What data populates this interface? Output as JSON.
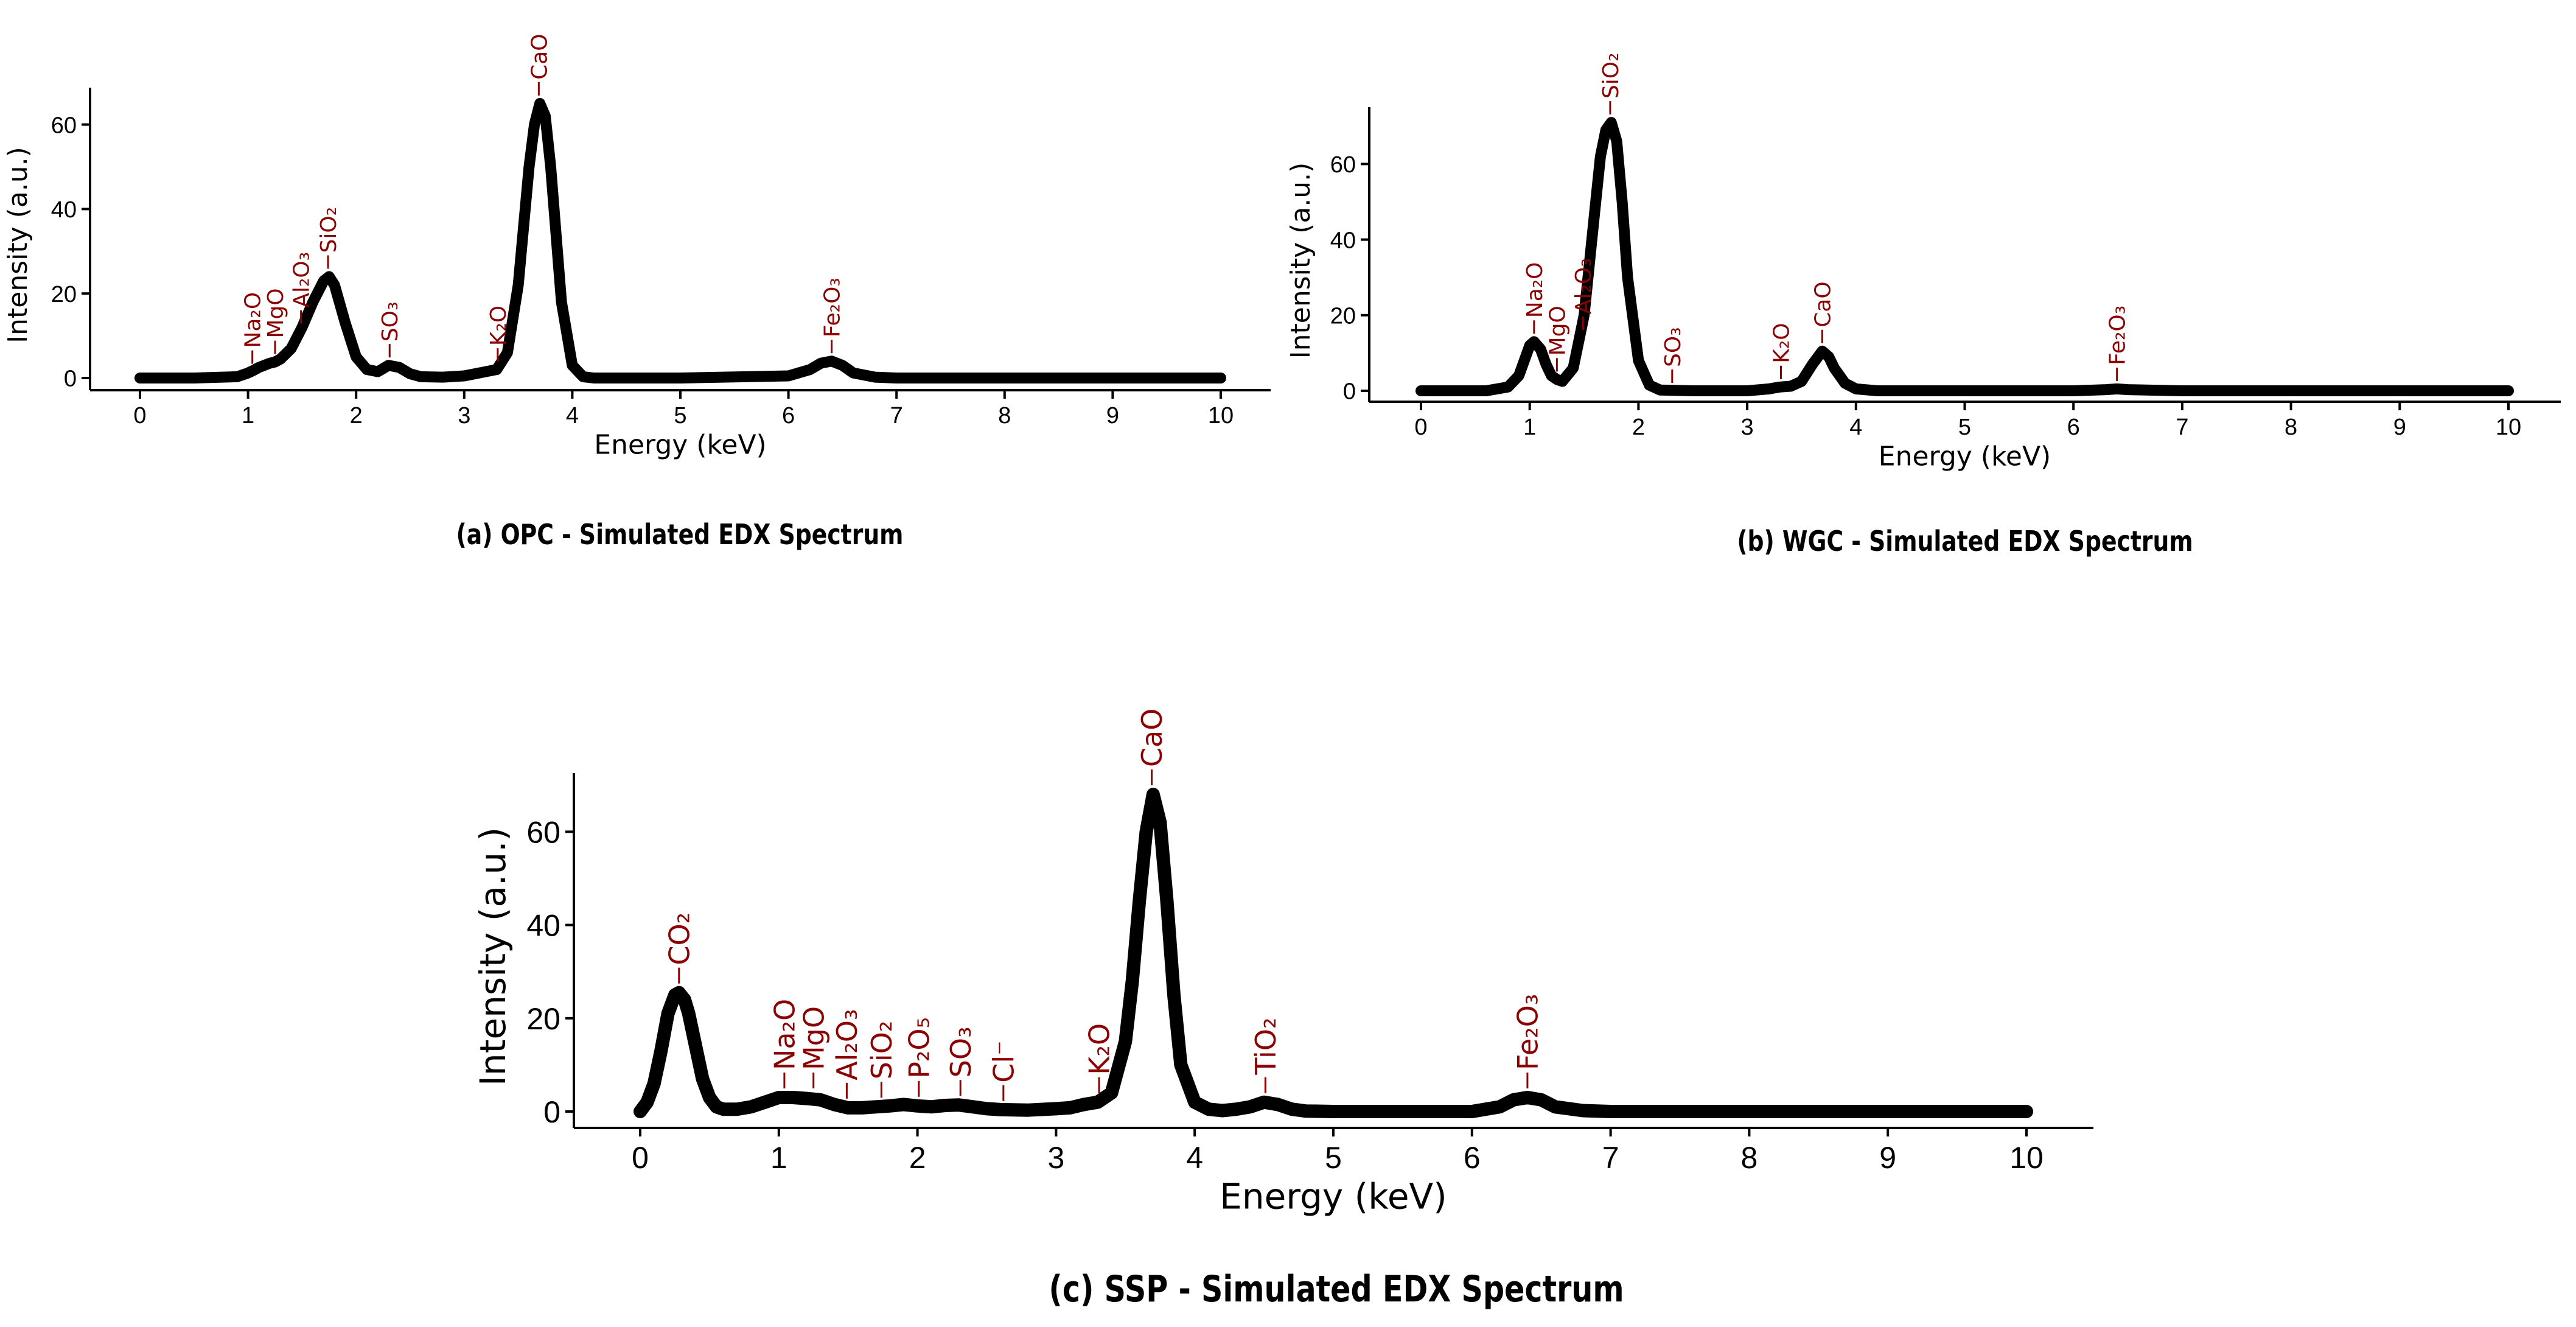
{
  "chart_data": [
    {
      "type": "line",
      "panel": "a",
      "caption": "(a) OPC - Simulated EDX Spectrum",
      "xlabel": "Energy (keV)",
      "ylabel": "Intensity (a.u.)",
      "xlim": [
        0,
        10
      ],
      "ylim": [
        0,
        68
      ],
      "xticks": [
        0,
        1,
        2,
        3,
        4,
        5,
        6,
        7,
        8,
        9,
        10
      ],
      "yticks": [
        0,
        20,
        40,
        60
      ],
      "x": [
        0,
        0.5,
        0.9,
        1.0,
        1.05,
        1.1,
        1.2,
        1.25,
        1.3,
        1.4,
        1.5,
        1.6,
        1.7,
        1.75,
        1.8,
        1.9,
        2.0,
        2.1,
        2.2,
        2.3,
        2.4,
        2.5,
        2.6,
        2.8,
        3.0,
        3.2,
        3.3,
        3.4,
        3.5,
        3.6,
        3.65,
        3.7,
        3.75,
        3.8,
        3.9,
        4.0,
        4.1,
        4.2,
        5.0,
        6.0,
        6.2,
        6.3,
        6.4,
        6.5,
        6.6,
        6.8,
        7.0,
        8.0,
        9.0,
        10.0
      ],
      "y": [
        0,
        0,
        0.3,
        1.2,
        1.8,
        2.5,
        3.5,
        3.8,
        4.5,
        7,
        12,
        18,
        23,
        24,
        22,
        13,
        5,
        2,
        1.5,
        3,
        2.5,
        1,
        0.3,
        0.2,
        0.5,
        1.5,
        2,
        6,
        22,
        50,
        60,
        65,
        62,
        50,
        18,
        3,
        0.3,
        0,
        0,
        0.5,
        2,
        3.5,
        4,
        3,
        1.2,
        0.2,
        0,
        0,
        0,
        0
      ],
      "peaks": [
        {
          "label": "Na₂O",
          "x": 1.04,
          "y": 1.5
        },
        {
          "label": "MgO",
          "x": 1.25,
          "y": 3.8
        },
        {
          "label": "Al₂O₃",
          "x": 1.49,
          "y": 11
        },
        {
          "label": "SiO₂",
          "x": 1.74,
          "y": 24
        },
        {
          "label": "SO₃",
          "x": 2.31,
          "y": 3
        },
        {
          "label": "K₂O",
          "x": 3.31,
          "y": 2
        },
        {
          "label": "CaO",
          "x": 3.69,
          "y": 65
        },
        {
          "label": "Fe₂O₃",
          "x": 6.4,
          "y": 4
        }
      ]
    },
    {
      "type": "line",
      "panel": "b",
      "caption": "(b) WGC - Simulated EDX Spectrum",
      "xlabel": "Energy (keV)",
      "ylabel": "Intensity (a.u.)",
      "xlim": [
        0,
        10
      ],
      "ylim": [
        0,
        75
      ],
      "xticks": [
        0,
        1,
        2,
        3,
        4,
        5,
        6,
        7,
        8,
        9,
        10
      ],
      "yticks": [
        0,
        20,
        40,
        60
      ],
      "x": [
        0,
        0.6,
        0.8,
        0.9,
        0.95,
        1.0,
        1.04,
        1.1,
        1.15,
        1.2,
        1.25,
        1.3,
        1.4,
        1.5,
        1.6,
        1.65,
        1.7,
        1.75,
        1.8,
        1.85,
        1.9,
        2.0,
        2.1,
        2.2,
        2.5,
        3.0,
        3.2,
        3.3,
        3.4,
        3.5,
        3.6,
        3.69,
        3.75,
        3.8,
        3.9,
        4.0,
        4.2,
        5.0,
        6.0,
        6.3,
        6.4,
        6.5,
        7.0,
        8.0,
        9.0,
        10.0
      ],
      "y": [
        0,
        0,
        1,
        4,
        8,
        12,
        13,
        11,
        7,
        4,
        3,
        2.5,
        6,
        20,
        48,
        62,
        69,
        71,
        66,
        50,
        30,
        8,
        1.5,
        0.2,
        0,
        0,
        0.5,
        1,
        1.2,
        2.5,
        7,
        10.5,
        9,
        6,
        2,
        0.5,
        0,
        0,
        0,
        0.3,
        0.5,
        0.3,
        0,
        0,
        0,
        0
      ],
      "peaks": [
        {
          "label": "Na₂O",
          "x": 1.04,
          "y": 13
        },
        {
          "label": "MgO",
          "x": 1.25,
          "y": 3
        },
        {
          "label": "Al₂O₃",
          "x": 1.49,
          "y": 14
        },
        {
          "label": "SiO₂",
          "x": 1.74,
          "y": 71
        },
        {
          "label": "SO₃",
          "x": 2.31,
          "y": 0
        },
        {
          "label": "K₂O",
          "x": 3.31,
          "y": 1
        },
        {
          "label": "CaO",
          "x": 3.69,
          "y": 10.5
        },
        {
          "label": "Fe₂O₃",
          "x": 6.4,
          "y": 0.5
        }
      ]
    },
    {
      "type": "line",
      "panel": "c",
      "caption": "(c) SSP - Simulated EDX Spectrum",
      "xlabel": "Energy (keV)",
      "ylabel": "Intensity (a.u.)",
      "xlim": [
        0,
        10
      ],
      "ylim": [
        0,
        72
      ],
      "xticks": [
        0,
        1,
        2,
        3,
        4,
        5,
        6,
        7,
        8,
        9,
        10
      ],
      "yticks": [
        0,
        20,
        40,
        60
      ],
      "x": [
        0,
        0.05,
        0.1,
        0.15,
        0.2,
        0.25,
        0.28,
        0.32,
        0.35,
        0.4,
        0.45,
        0.5,
        0.55,
        0.6,
        0.7,
        0.8,
        0.9,
        1.0,
        1.1,
        1.2,
        1.3,
        1.4,
        1.5,
        1.6,
        1.7,
        1.8,
        1.9,
        2.0,
        2.1,
        2.2,
        2.3,
        2.4,
        2.5,
        2.6,
        2.8,
        3.0,
        3.1,
        3.2,
        3.3,
        3.4,
        3.5,
        3.55,
        3.6,
        3.65,
        3.7,
        3.75,
        3.8,
        3.85,
        3.9,
        4.0,
        4.1,
        4.2,
        4.3,
        4.4,
        4.5,
        4.6,
        4.7,
        4.8,
        5.0,
        6.0,
        6.2,
        6.3,
        6.4,
        6.5,
        6.6,
        6.8,
        7.0,
        8.0,
        9.0,
        10.0
      ],
      "y": [
        0,
        2,
        6,
        13,
        21,
        25,
        25.5,
        24,
        21,
        14,
        7,
        3,
        1,
        0.5,
        0.5,
        1,
        2,
        3,
        3,
        2.8,
        2.5,
        1.5,
        0.8,
        0.8,
        1,
        1.2,
        1.5,
        1.2,
        1,
        1.3,
        1.4,
        1,
        0.6,
        0.4,
        0.3,
        0.6,
        0.8,
        1.5,
        2,
        4,
        15,
        28,
        45,
        60,
        68,
        62,
        45,
        25,
        10,
        2,
        0.5,
        0.2,
        0.5,
        1,
        2,
        1.5,
        0.5,
        0.1,
        0,
        0,
        1,
        2.5,
        3,
        2.5,
        1,
        0.2,
        0,
        0,
        0,
        0
      ],
      "peaks": [
        {
          "label": "CO₂",
          "x": 0.28,
          "y": 25.5
        },
        {
          "label": "Na₂O",
          "x": 1.04,
          "y": 3
        },
        {
          "label": "MgO",
          "x": 1.25,
          "y": 3
        },
        {
          "label": "Al₂O₃",
          "x": 1.49,
          "y": 0.8
        },
        {
          "label": "SiO₂",
          "x": 1.74,
          "y": 1
        },
        {
          "label": "P₂O₅",
          "x": 2.01,
          "y": 1.2
        },
        {
          "label": "SO₃",
          "x": 2.31,
          "y": 1.4
        },
        {
          "label": "Cl⁻",
          "x": 2.62,
          "y": 0.3
        },
        {
          "label": "K₂O",
          "x": 3.31,
          "y": 2
        },
        {
          "label": "CaO",
          "x": 3.69,
          "y": 68
        },
        {
          "label": "TiO₂",
          "x": 4.51,
          "y": 2
        },
        {
          "label": "Fe₂O₃",
          "x": 6.4,
          "y": 3
        }
      ]
    }
  ]
}
